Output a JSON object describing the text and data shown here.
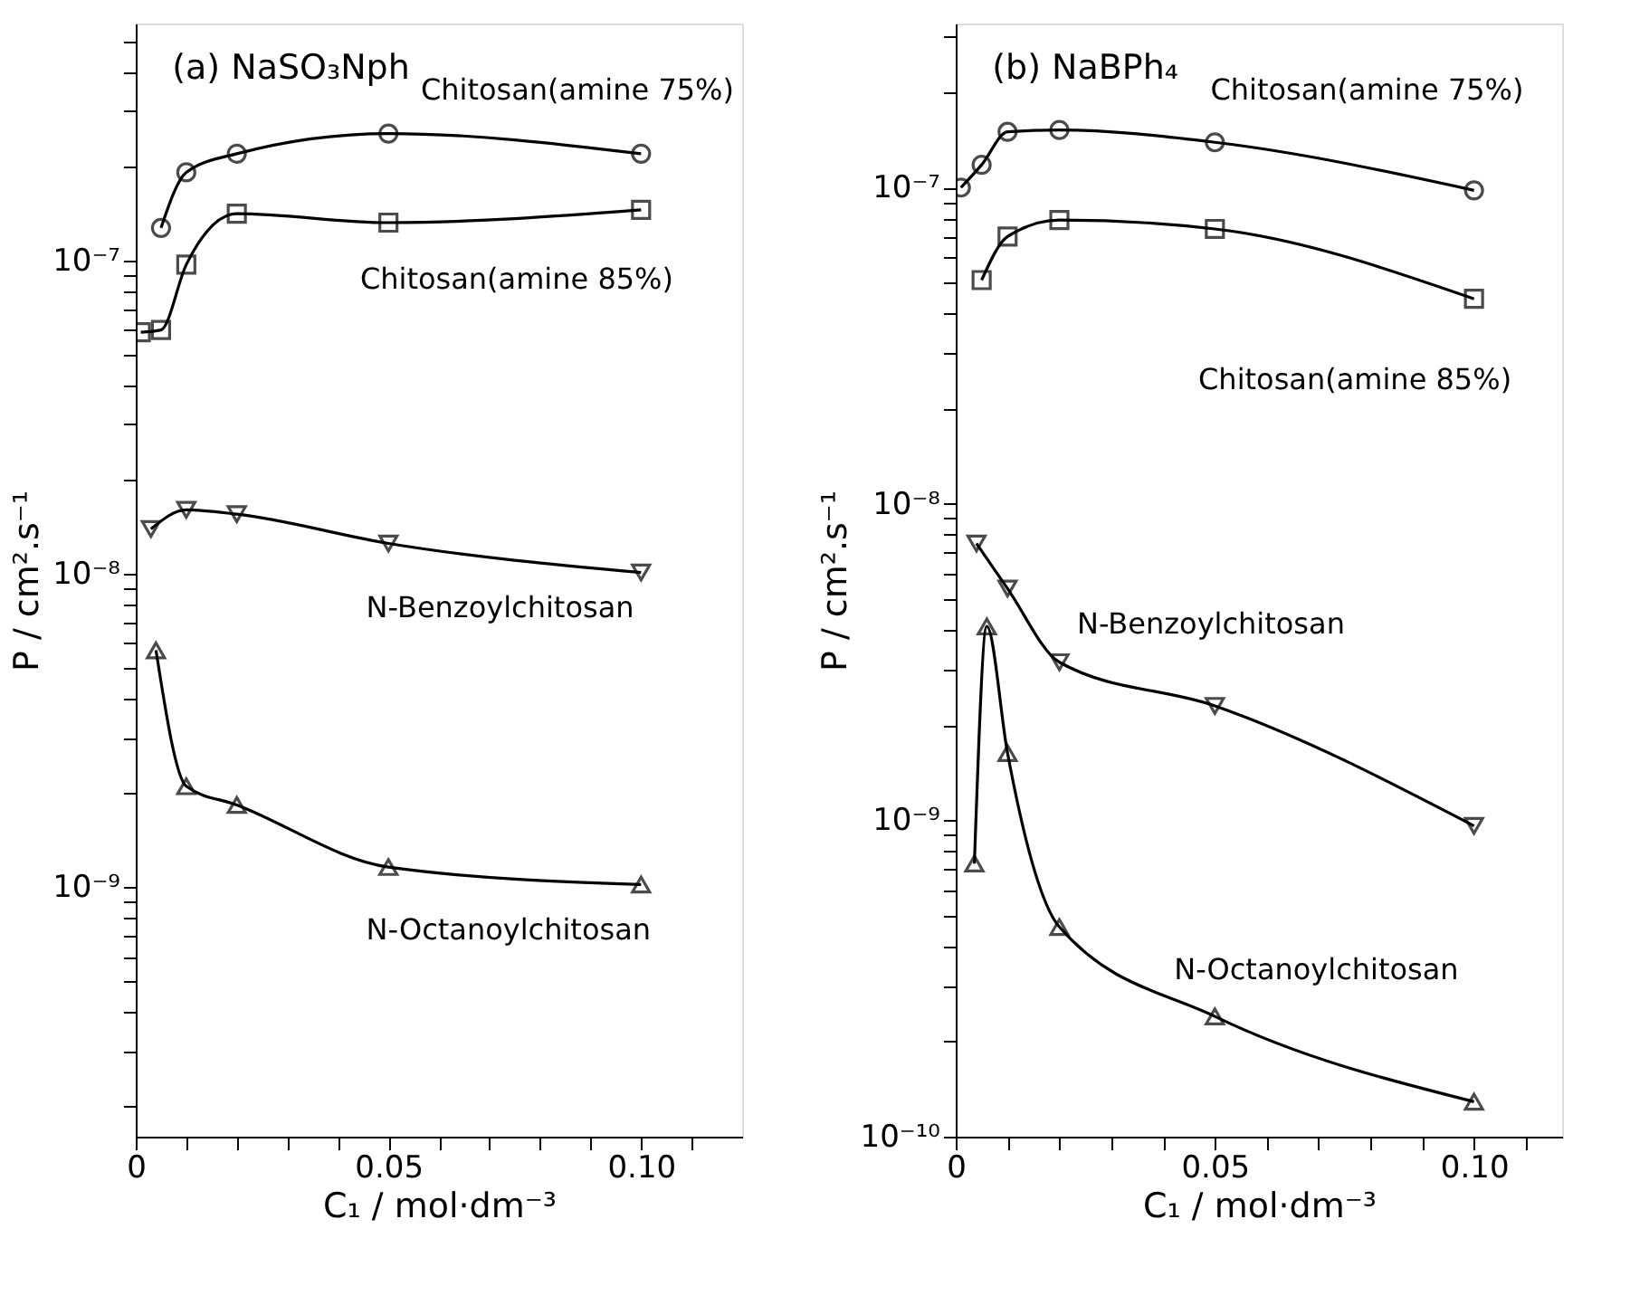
{
  "chart_data": [
    {
      "type": "line",
      "title": "(a) NaSO₃Nph",
      "xlabel": "C₁ / mol·dm⁻³",
      "ylabel": "P / cm².s⁻¹",
      "log": "y",
      "grid": false,
      "line_style": "solid",
      "xlim": [
        0,
        0.12
      ],
      "xticks": [
        0,
        {
          "value": 0.01,
          "label": null
        },
        {
          "value": 0.02,
          "label": null
        },
        {
          "value": 0.03,
          "label": null
        },
        {
          "value": 0.04,
          "label": null
        },
        0.05,
        {
          "value": 0.06,
          "label": null
        },
        {
          "value": 0.07,
          "label": null
        },
        {
          "value": 0.08,
          "label": null
        },
        {
          "value": 0.09,
          "label": null
        },
        {
          "value": 0.1,
          "label": "0.10"
        },
        {
          "value": 0.11,
          "label": null
        }
      ],
      "ylim": [
        1.6e-10,
        5.7e-07
      ],
      "yticks": [
        {
          "value": 2e-10,
          "label": null
        },
        {
          "value": 3e-10,
          "label": null
        },
        {
          "value": 4e-10,
          "label": null
        },
        {
          "value": 5e-10,
          "label": null
        },
        {
          "value": 6e-10,
          "label": null
        },
        {
          "value": 7e-10,
          "label": null
        },
        {
          "value": 8e-10,
          "label": null
        },
        {
          "value": 9e-10,
          "label": null
        },
        {
          "value": 1e-09,
          "label": "10⁻⁹"
        },
        {
          "value": 2e-09,
          "label": null
        },
        {
          "value": 3e-09,
          "label": null
        },
        {
          "value": 4e-09,
          "label": null
        },
        {
          "value": 5e-09,
          "label": null
        },
        {
          "value": 6e-09,
          "label": null
        },
        {
          "value": 7e-09,
          "label": null
        },
        {
          "value": 8e-09,
          "label": null
        },
        {
          "value": 9e-09,
          "label": null
        },
        {
          "value": 1e-08,
          "label": "10⁻⁸"
        },
        {
          "value": 2e-08,
          "label": null
        },
        {
          "value": 3e-08,
          "label": null
        },
        {
          "value": 4e-08,
          "label": null
        },
        {
          "value": 5e-08,
          "label": null
        },
        {
          "value": 6e-08,
          "label": null
        },
        {
          "value": 7e-08,
          "label": null
        },
        {
          "value": 8e-08,
          "label": null
        },
        {
          "value": 9e-08,
          "label": null
        },
        {
          "value": 1e-07,
          "label": "10⁻⁷"
        },
        {
          "value": 2e-07,
          "label": null
        },
        {
          "value": 3e-07,
          "label": null
        },
        {
          "value": 4e-07,
          "label": null
        },
        {
          "value": 5e-07,
          "label": null
        }
      ],
      "series": [
        {
          "name": "Chitosan(amine 75%)",
          "color": "#000000",
          "marker": "circle",
          "x": [
            0.005,
            0.01,
            0.02,
            0.05,
            0.1
          ],
          "values": [
            1.27e-07,
            1.91e-07,
            2.19e-07,
            2.54e-07,
            2.19e-07
          ]
        },
        {
          "name": "Chitosan(amine 85%)",
          "color": "#000000",
          "marker": "square",
          "x": [
            0.001,
            0.005,
            0.01,
            0.02,
            0.05,
            0.1
          ],
          "values": [
            5.9e-08,
            6e-08,
            9.7e-08,
            1.41e-07,
            1.32e-07,
            1.45e-07
          ]
        },
        {
          "name": "N-Benzoylchitosan",
          "color": "#000000",
          "marker": "triangle-down",
          "x": [
            0.003,
            0.01,
            0.02,
            0.05,
            0.1
          ],
          "values": [
            1.39e-08,
            1.6e-08,
            1.55e-08,
            1.25e-08,
            1.01e-08
          ]
        },
        {
          "name": "N-Octanoylchitosan",
          "color": "#000000",
          "marker": "triangle",
          "x": [
            0.004,
            0.01,
            0.02,
            0.05,
            0.1
          ],
          "values": [
            5.7e-09,
            2.1e-09,
            1.83e-09,
            1.16e-09,
            1.02e-09
          ]
        }
      ]
    },
    {
      "type": "line",
      "title": "(b) NaBPh₄",
      "xlabel": "C₁ / mol·dm⁻³",
      "ylabel": "P / cm².s⁻¹",
      "log": "y",
      "grid": false,
      "line_style": "solid",
      "xlim": [
        0,
        0.117
      ],
      "xticks": [
        0,
        {
          "value": 0.01,
          "label": null
        },
        {
          "value": 0.02,
          "label": null
        },
        {
          "value": 0.03,
          "label": null
        },
        {
          "value": 0.04,
          "label": null
        },
        0.05,
        {
          "value": 0.06,
          "label": null
        },
        {
          "value": 0.07,
          "label": null
        },
        {
          "value": 0.08,
          "label": null
        },
        {
          "value": 0.09,
          "label": null
        },
        {
          "value": 0.1,
          "label": "0.10"
        },
        {
          "value": 0.11,
          "label": null
        }
      ],
      "ylim": [
        1e-10,
        3.3e-07
      ],
      "yticks": [
        {
          "value": 1e-10,
          "label": "10⁻¹⁰"
        },
        {
          "value": 2e-10,
          "label": null
        },
        {
          "value": 3e-10,
          "label": null
        },
        {
          "value": 4e-10,
          "label": null
        },
        {
          "value": 5e-10,
          "label": null
        },
        {
          "value": 6e-10,
          "label": null
        },
        {
          "value": 7e-10,
          "label": null
        },
        {
          "value": 8e-10,
          "label": null
        },
        {
          "value": 9e-10,
          "label": null
        },
        {
          "value": 1e-09,
          "label": "10⁻⁹"
        },
        {
          "value": 2e-09,
          "label": null
        },
        {
          "value": 3e-09,
          "label": null
        },
        {
          "value": 4e-09,
          "label": null
        },
        {
          "value": 5e-09,
          "label": null
        },
        {
          "value": 6e-09,
          "label": null
        },
        {
          "value": 7e-09,
          "label": null
        },
        {
          "value": 8e-09,
          "label": null
        },
        {
          "value": 9e-09,
          "label": null
        },
        {
          "value": 1e-08,
          "label": "10⁻⁸"
        },
        {
          "value": 2e-08,
          "label": null
        },
        {
          "value": 3e-08,
          "label": null
        },
        {
          "value": 4e-08,
          "label": null
        },
        {
          "value": 5e-08,
          "label": null
        },
        {
          "value": 6e-08,
          "label": null
        },
        {
          "value": 7e-08,
          "label": null
        },
        {
          "value": 8e-08,
          "label": null
        },
        {
          "value": 9e-08,
          "label": null
        },
        {
          "value": 1e-07,
          "label": "10⁻⁷"
        },
        {
          "value": 2e-07,
          "label": null
        },
        {
          "value": 3e-07,
          "label": null
        }
      ],
      "series": [
        {
          "name": "Chitosan(amine 75%)",
          "color": "#000000",
          "marker": "circle",
          "x": [
            0.001,
            0.005,
            0.01,
            0.02,
            0.05,
            0.1
          ],
          "values": [
            1e-07,
            1.18e-07,
            1.5e-07,
            1.52e-07,
            1.39e-07,
            9.8e-08
          ]
        },
        {
          "name": "Chitosan(amine 85%)",
          "color": "#000000",
          "marker": "square",
          "x": [
            0.005,
            0.01,
            0.02,
            0.05,
            0.1
          ],
          "values": [
            5.1e-08,
            7e-08,
            7.9e-08,
            7.4e-08,
            4.45e-08
          ]
        },
        {
          "name": "N-Benzoylchitosan",
          "color": "#000000",
          "marker": "triangle-down",
          "x": [
            0.004,
            0.01,
            0.02,
            0.05,
            0.1
          ],
          "values": [
            7.5e-09,
            5.4e-09,
            3.16e-09,
            2.3e-09,
            9.6e-10
          ]
        },
        {
          "name": "N-Octanoylchitosan",
          "color": "#000000",
          "marker": "triangle",
          "x": [
            0.0036,
            0.006,
            0.01,
            0.02,
            0.05,
            0.1
          ],
          "values": [
            7.3e-10,
            4.1e-09,
            1.63e-09,
            4.6e-10,
            2.4e-10,
            1.29e-10
          ]
        }
      ]
    }
  ]
}
